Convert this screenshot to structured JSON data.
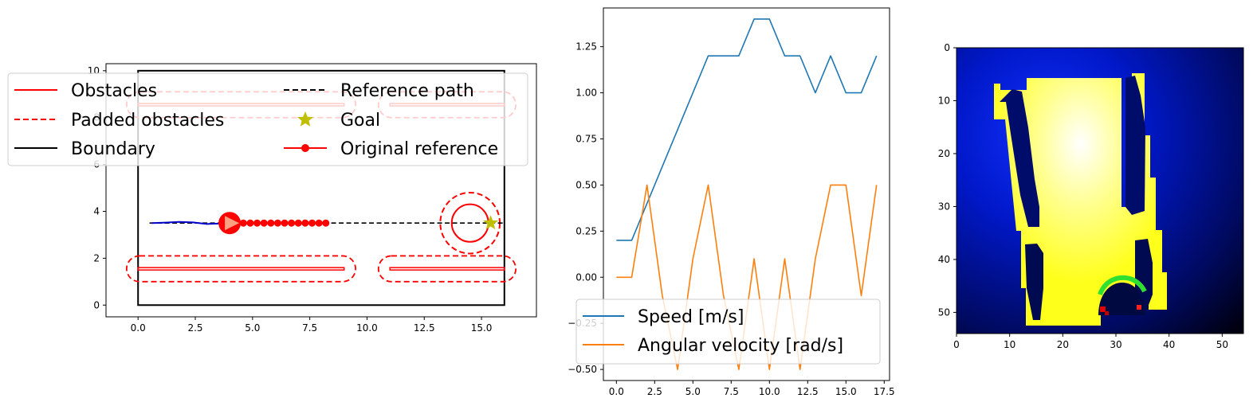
{
  "colors": {
    "obstacle": "#ff0000",
    "boundary": "#000000",
    "reference": "#000000",
    "goal": "#bfbf00",
    "trajectory": "#0000cd",
    "speed": "#1f77b4",
    "angular": "#ff7f0e"
  },
  "chart_data": [
    {
      "type": "line",
      "xlim": [
        -1.4,
        17.4
      ],
      "ylim": [
        -0.5,
        10.3
      ],
      "x_ticks": [
        "0.0",
        "2.5",
        "5.0",
        "7.5",
        "10.0",
        "12.5",
        "15.0"
      ],
      "y_ticks": [
        "0",
        "2",
        "4",
        "6",
        "8",
        "10"
      ],
      "legend_placement": "top, spanning beyond left edge",
      "legend": [
        {
          "label": "Obstacles",
          "style": "solid-red"
        },
        {
          "label": "Reference path",
          "style": "dashed-black"
        },
        {
          "label": "Padded obstacles",
          "style": "dashed-red"
        },
        {
          "label": "Goal",
          "style": "star"
        },
        {
          "label": "Boundary",
          "style": "solid-black"
        },
        {
          "label": "Original reference",
          "style": "red-dot-line"
        }
      ],
      "boundary": {
        "x": [
          0,
          16
        ],
        "y": [
          0,
          10
        ]
      },
      "obstacles": [
        {
          "x0": 0,
          "x1": 9,
          "y0": 1.5,
          "y1": 1.6
        },
        {
          "x0": 11,
          "x1": 16,
          "y0": 1.5,
          "y1": 1.6
        },
        {
          "x0": 0,
          "x1": 9,
          "y0": 8.5,
          "y1": 8.6
        },
        {
          "x0": 11,
          "x1": 16,
          "y0": 8.5,
          "y1": 8.6
        }
      ],
      "circle_obstacle": {
        "cx": 14.5,
        "cy": 3.5,
        "r": 0.8,
        "padded_r": 1.3
      },
      "reference_path": {
        "x": [
          0.5,
          16
        ],
        "y": 3.5
      },
      "goal": {
        "x": 15.4,
        "y": 3.5
      },
      "trajectory": {
        "x": [
          0.6,
          1.2,
          1.8,
          2.4,
          3.0,
          3.6,
          4.0
        ],
        "y": [
          3.5,
          3.52,
          3.55,
          3.53,
          3.46,
          3.48,
          3.5
        ]
      },
      "original_reference": {
        "x": [
          4.0,
          4.3,
          4.6,
          4.9,
          5.2,
          5.5,
          5.8,
          6.1,
          6.4,
          6.7,
          7.0,
          7.3,
          7.6,
          7.9,
          8.2
        ],
        "y": 3.5
      },
      "robot": {
        "x": 4.0,
        "y": 3.5
      }
    },
    {
      "type": "line",
      "xlim": [
        -0.85,
        17.85
      ],
      "ylim": [
        -0.56,
        1.46
      ],
      "x_ticks": [
        "0.0",
        "2.5",
        "5.0",
        "7.5",
        "10.0",
        "12.5",
        "15.0",
        "17.5"
      ],
      "y_ticks": [
        "−0.50",
        "−0.25",
        "0.00",
        "0.25",
        "0.50",
        "0.75",
        "1.00",
        "1.25"
      ],
      "legend_placement": "lower-left",
      "x": [
        0,
        1,
        2,
        3,
        4,
        5,
        6,
        7,
        8,
        9,
        10,
        11,
        12,
        13,
        14,
        15,
        16,
        17
      ],
      "series": [
        {
          "name": "Speed [m/s]",
          "values": [
            0.2,
            0.2,
            0.4,
            0.6,
            0.8,
            1.0,
            1.2,
            1.2,
            1.2,
            1.4,
            1.4,
            1.2,
            1.2,
            1.0,
            1.2,
            1.0,
            1.0,
            1.2
          ]
        },
        {
          "name": "Angular velocity [rad/s]",
          "values": [
            0.0,
            0.0,
            0.5,
            -0.1,
            -0.5,
            0.1,
            0.5,
            -0.1,
            -0.5,
            0.1,
            -0.5,
            0.1,
            -0.5,
            0.1,
            0.5,
            0.5,
            -0.1,
            0.5
          ]
        }
      ]
    },
    {
      "type": "heatmap",
      "xlim": [
        0,
        54
      ],
      "ylim": [
        54,
        0
      ],
      "x_ticks": [
        "0",
        "10",
        "20",
        "30",
        "40",
        "50"
      ],
      "y_ticks": [
        "0",
        "10",
        "20",
        "30",
        "40",
        "50"
      ]
    }
  ]
}
